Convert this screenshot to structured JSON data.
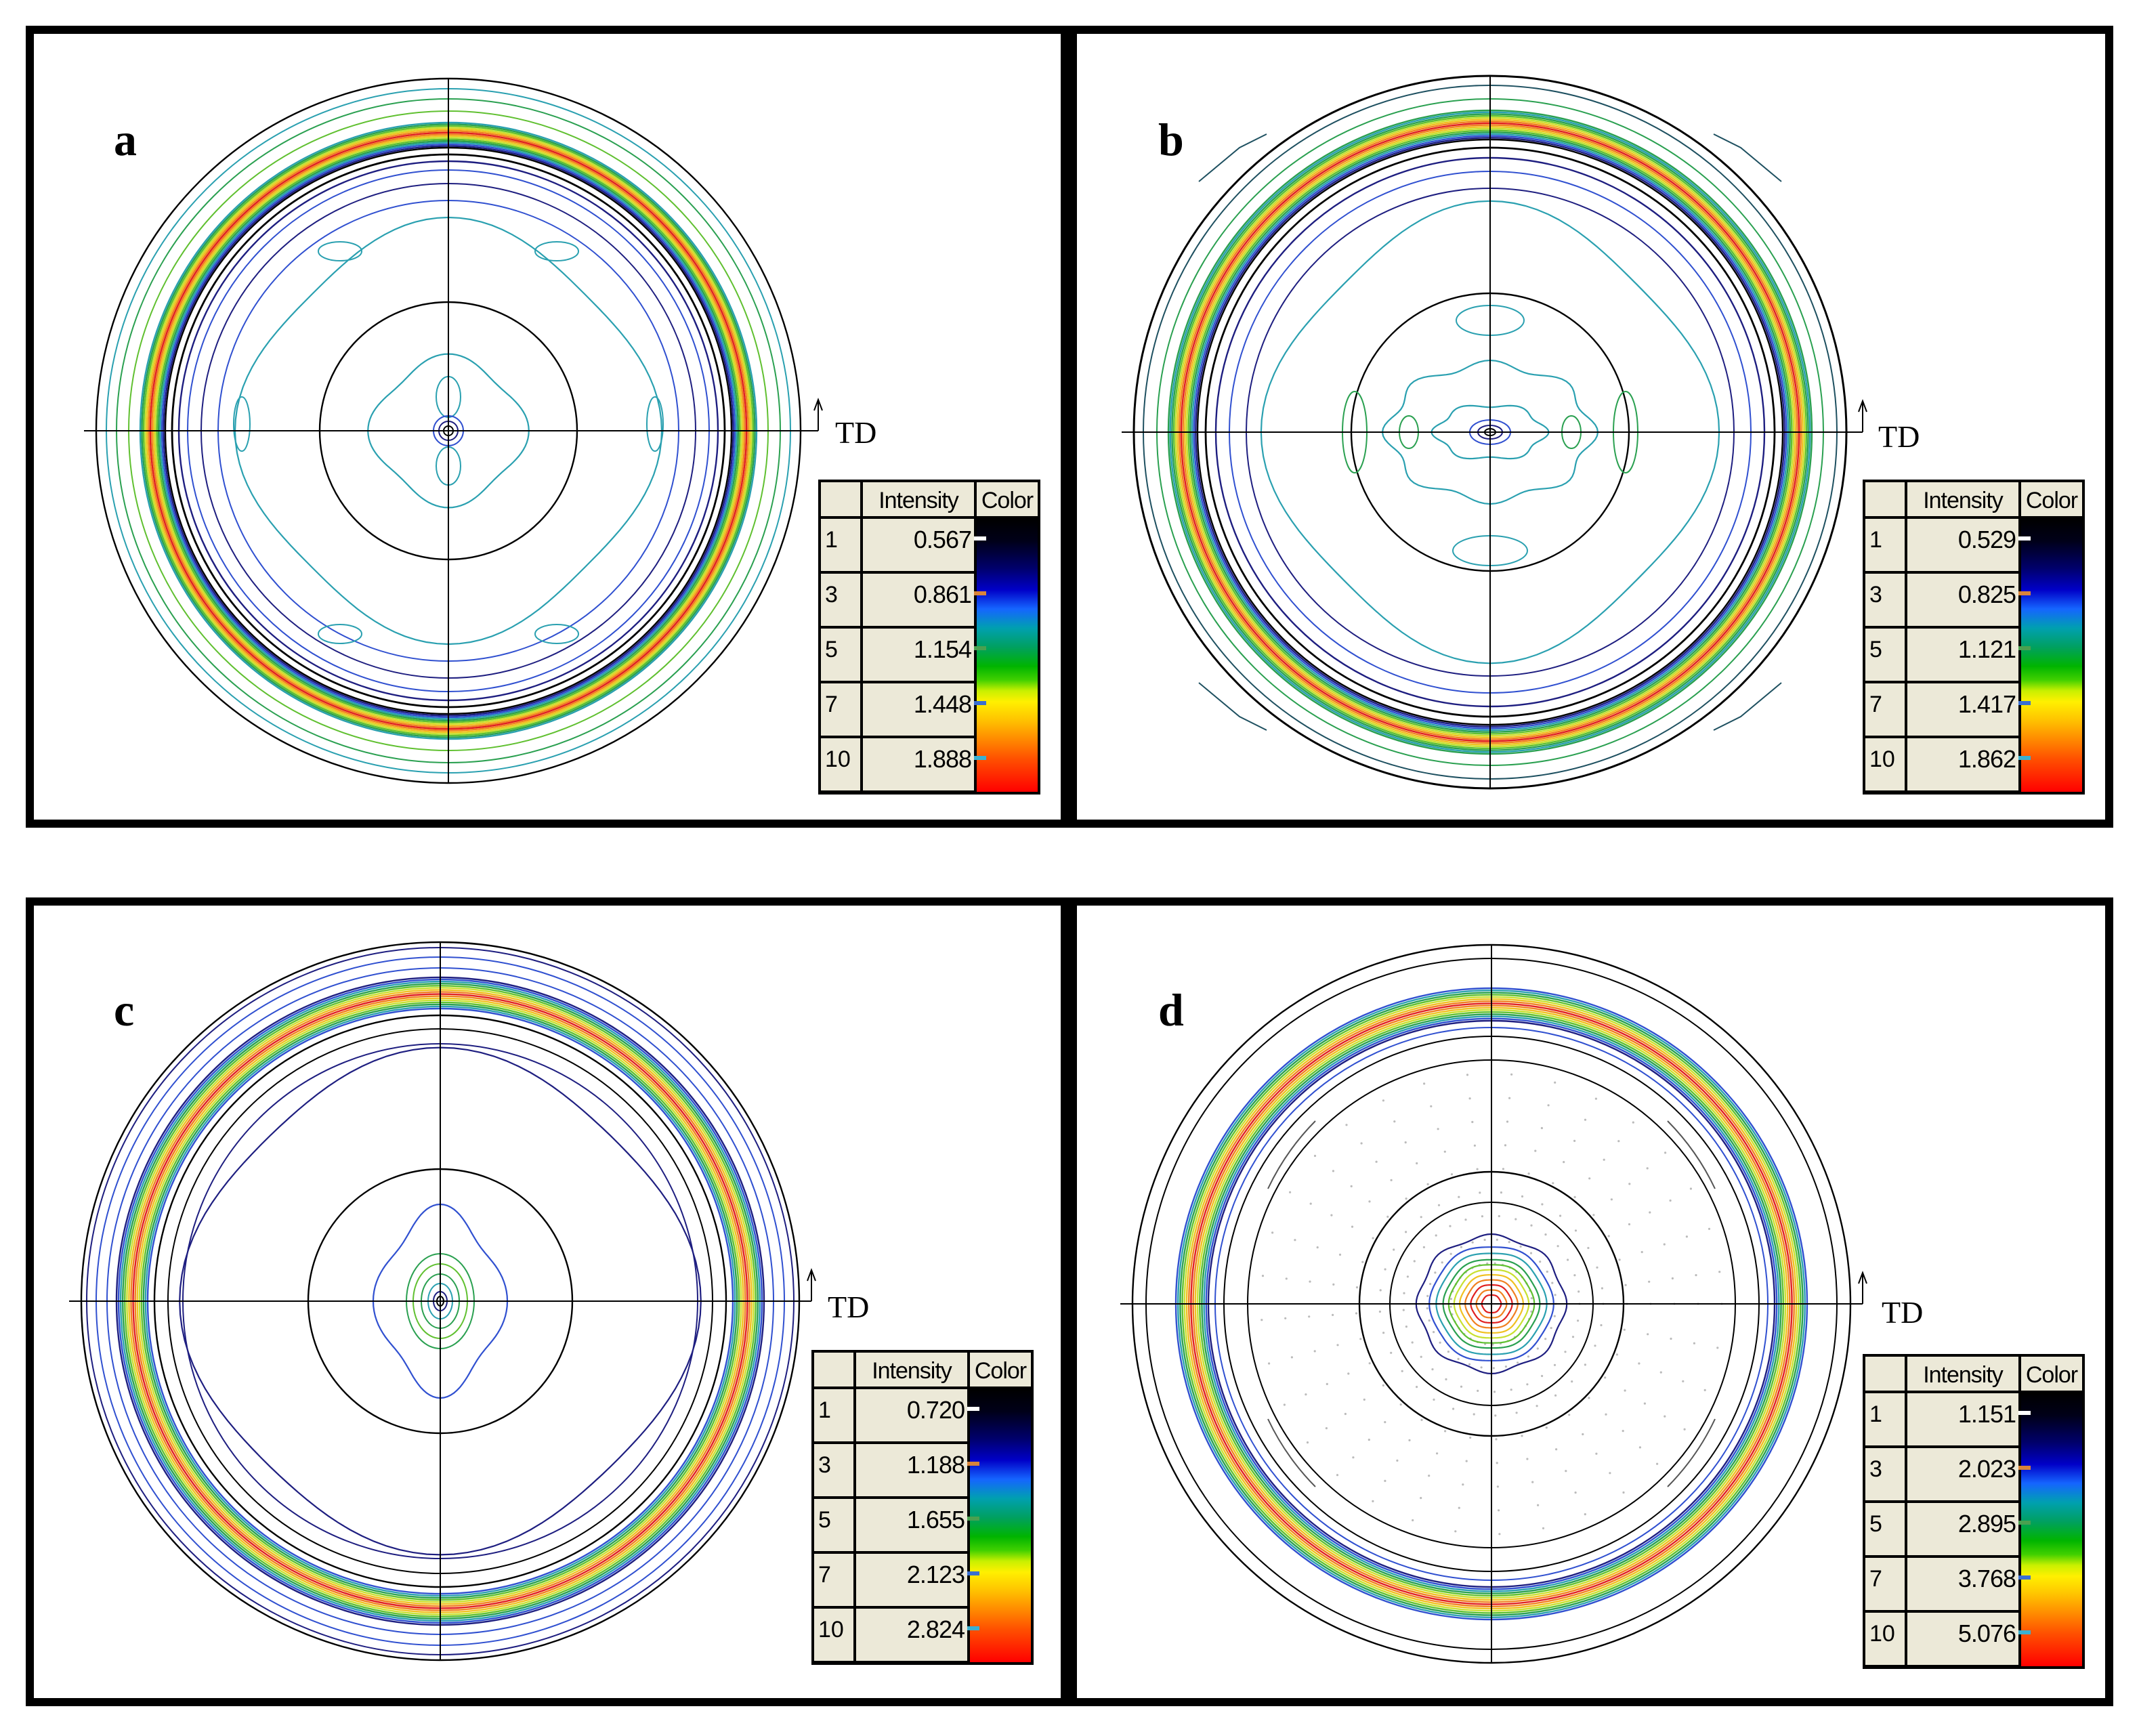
{
  "td_label": "TD",
  "legend_headers": {
    "intensity": "Intensity",
    "color": "Color"
  },
  "panels": [
    {
      "letter": "a",
      "legend": [
        {
          "level": "1",
          "value": "0.567"
        },
        {
          "level": "3",
          "value": "0.861"
        },
        {
          "level": "5",
          "value": "1.154"
        },
        {
          "level": "7",
          "value": "1.448"
        },
        {
          "level": "10",
          "value": "1.888"
        }
      ]
    },
    {
      "letter": "b",
      "legend": [
        {
          "level": "1",
          "value": "0.529"
        },
        {
          "level": "3",
          "value": "0.825"
        },
        {
          "level": "5",
          "value": "1.121"
        },
        {
          "level": "7",
          "value": "1.417"
        },
        {
          "level": "10",
          "value": "1.862"
        }
      ]
    },
    {
      "letter": "c",
      "legend": [
        {
          "level": "1",
          "value": "0.720"
        },
        {
          "level": "3",
          "value": "1.188"
        },
        {
          "level": "5",
          "value": "1.655"
        },
        {
          "level": "7",
          "value": "2.123"
        },
        {
          "level": "10",
          "value": "2.824"
        }
      ]
    },
    {
      "letter": "d",
      "legend": [
        {
          "level": "1",
          "value": "1.151"
        },
        {
          "level": "3",
          "value": "2.023"
        },
        {
          "level": "5",
          "value": "2.895"
        },
        {
          "level": "7",
          "value": "3.768"
        },
        {
          "level": "10",
          "value": "5.076"
        }
      ]
    }
  ],
  "tick_colors": [
    "#ffffff",
    "#d9843a",
    "#4aa050",
    "#3a6fd0",
    "#3ab0d0"
  ],
  "ring_colors": [
    "#000000",
    "#1e1e80",
    "#3050d0",
    "#2aa0b0",
    "#2aa050",
    "#60c030",
    "#c8e030",
    "#f0c020",
    "#f08020",
    "#e02020"
  ]
}
